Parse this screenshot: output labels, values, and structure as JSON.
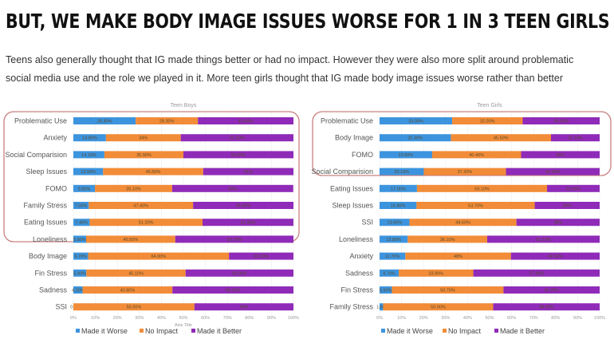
{
  "header": {
    "title": "BUT, WE MAKE BODY IMAGE ISSUES WORSE FOR 1 IN 3 TEEN GIRLS",
    "subtitle_line1": "Teens also generally thought that IG made things better or had no impact. However they were also more split around problematic",
    "subtitle_line2": "social media use and the role we played in it. More teen girls thought that IG made body image issues worse rather than better"
  },
  "colors": {
    "made_it_worse": "#3d94de",
    "no_impact": "#f28c38",
    "made_it_better": "#8f2bb8",
    "highlight_box": "#c98080"
  },
  "chart_data": [
    {
      "type": "bar",
      "orientation": "horizontal",
      "stacked": "percent",
      "title": "Teen Boys",
      "xlabel": "Axis Title",
      "ylabel": "",
      "xlim": [
        0,
        100
      ],
      "xticks": [
        "0%",
        "10%",
        "20%",
        "30%",
        "40%",
        "50%",
        "60%",
        "70%",
        "80%",
        "90%",
        "100%"
      ],
      "grid": true,
      "legend": "bottom",
      "highlighted_categories": [
        "Problematic Use",
        "Anxiety",
        "Social Comparision",
        "Sleep Issues",
        "FOMO",
        "Family Stress",
        "Eating Issues",
        "Loneliness"
      ],
      "categories": [
        "Problematic Use",
        "Anxiety",
        "Social Comparision",
        "Sleep Issues",
        "FOMO",
        "Family Stress",
        "Eating Issues",
        "Loneliness",
        "Body Image",
        "Fin Stress",
        "Sadness",
        "SSI"
      ],
      "series": [
        {
          "name": "Made it Worse",
          "values": [
            28.3,
            14.8,
            14.1,
            13.5,
            9.8,
            7.0,
            7.4,
            5.8,
            6.7,
            5.9,
            4.2,
            0.0
          ],
          "labels": [
            "28.30%",
            "14.80%",
            "14.10%",
            "13.50%",
            "9.80%",
            "7.00%",
            "7.40%",
            "5.80%",
            "6.70%",
            "5.90%",
            "4.20%",
            "0.00%"
          ]
        },
        {
          "name": "No Impact",
          "values": [
            28.3,
            34.0,
            35.9,
            45.5,
            35.1,
            47.4,
            51.3,
            40.5,
            64.0,
            45.1,
            40.8,
            55.0
          ],
          "labels": [
            "28.30%",
            "34%",
            "35.90%",
            "45.50%",
            "35.10%",
            "47.40%",
            "51.30%",
            "40.50%",
            "64.00%",
            "45.10%",
            "40.80%",
            "55.00%"
          ]
        },
        {
          "name": "Made it Better",
          "values": [
            43.4,
            51.2,
            50.0,
            41.0,
            55.0,
            45.6,
            41.3,
            53.7,
            29.3,
            49.0,
            55.0,
            45.0
          ],
          "labels": [
            "43.40%",
            "51.20%",
            "50.00%",
            "41%",
            "55%",
            "45.60%",
            "41.30%",
            "53.70%",
            "29.30%",
            "49.00%",
            "55.00%",
            "45%"
          ]
        }
      ]
    },
    {
      "type": "bar",
      "orientation": "horizontal",
      "stacked": "percent",
      "title": "Teen Girls",
      "xlabel": "",
      "ylabel": "",
      "xlim": [
        0,
        100
      ],
      "xticks": [
        "0%",
        "10%",
        "20%",
        "30%",
        "40%",
        "50%",
        "60%",
        "70%",
        "80%",
        "90%",
        "100%"
      ],
      "grid": true,
      "legend": "bottom",
      "highlighted_categories": [
        "Problematic Use",
        "Body Image",
        "FOMO",
        "Social Comparision"
      ],
      "categories": [
        "Problematic Use",
        "Body Image",
        "FOMO",
        "Social Comparision",
        "Eating Issues",
        "Sleep Issues",
        "SSI",
        "Loneliness",
        "Anxiety",
        "Sadness",
        "Fin Stress",
        "Family Stress"
      ],
      "series": [
        {
          "name": "Made it Worse",
          "values": [
            33.0,
            32.4,
            23.9,
            20.1,
            17.0,
            16.8,
            13.6,
            12.8,
            11.7,
            8.7,
            5.6,
            1.6
          ],
          "labels": [
            "33.00%",
            "32.40%",
            "23.90%",
            "20.10%",
            "17.00%",
            "16.80%",
            "13.60%",
            "12.80%",
            "11.70%",
            "8.70%",
            "5.60%",
            "1.60%"
          ]
        },
        {
          "name": "No Impact",
          "values": [
            32.0,
            45.5,
            40.4,
            37.3,
            59.1,
            53.7,
            48.6,
            36.1,
            48.0,
            33.9,
            50.7,
            50.0
          ],
          "labels": [
            "32.00%",
            "45.50%",
            "40.40%",
            "37.30%",
            "59.10%",
            "53.70%",
            "48.60%",
            "36.10%",
            "48%",
            "33.90%",
            "50.70%",
            "50.00%"
          ]
        },
        {
          "name": "Made it Better",
          "values": [
            35.0,
            22.1,
            35.7,
            42.6,
            23.9,
            29.5,
            37.8,
            51.1,
            40.3,
            57.4,
            43.7,
            48.4
          ],
          "labels": [
            "35.00%",
            "22.10%",
            "36%",
            "42.60%",
            "23.90%",
            "30%",
            "38%",
            "51.10%",
            "40.30%",
            "57.40%",
            "43.70%",
            "48.40%"
          ]
        }
      ]
    }
  ]
}
